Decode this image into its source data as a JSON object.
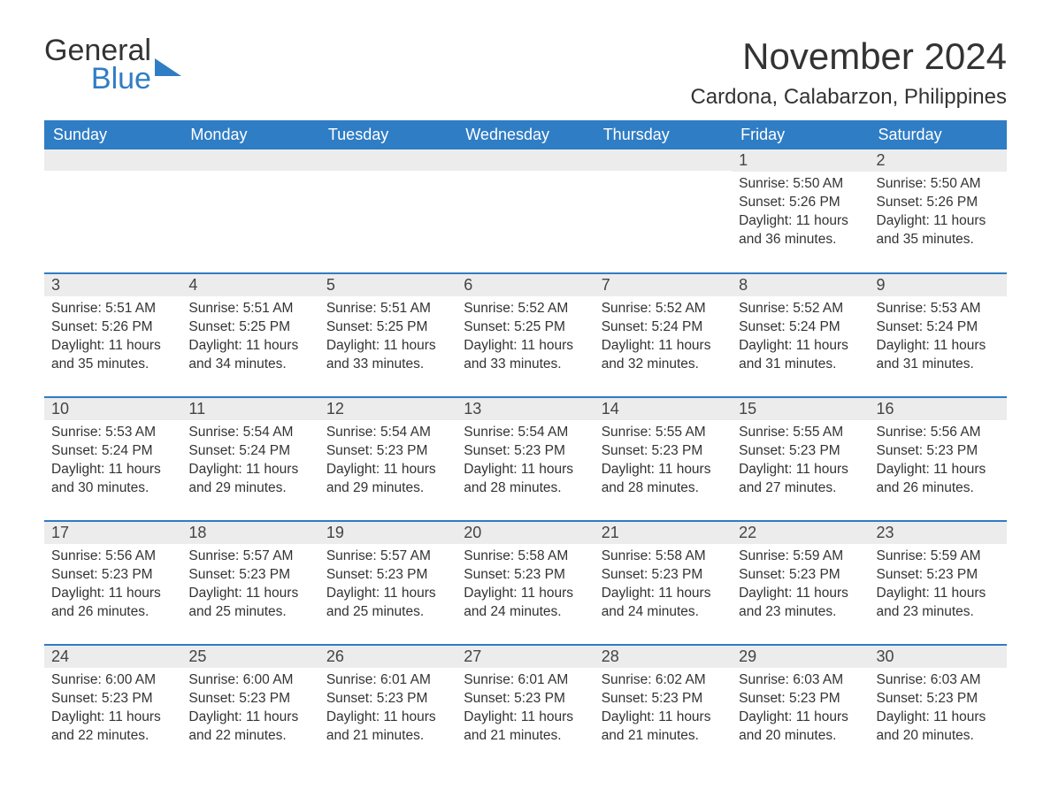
{
  "brand": {
    "word1": "General",
    "word2": "Blue"
  },
  "title": "November 2024",
  "location": "Cardona, Calabarzon, Philippines",
  "colors": {
    "header_bg": "#2f7dc4",
    "header_text": "#ffffff",
    "daynum_bg": "#ececec",
    "rule": "#2f7dc4",
    "body_text": "#333333",
    "page_bg": "#ffffff"
  },
  "typography": {
    "title_fontsize": 42,
    "location_fontsize": 24,
    "dayheader_fontsize": 18,
    "daynum_fontsize": 18,
    "body_fontsize": 15.5
  },
  "day_headers": [
    "Sunday",
    "Monday",
    "Tuesday",
    "Wednesday",
    "Thursday",
    "Friday",
    "Saturday"
  ],
  "weeks": [
    [
      {
        "n": "",
        "sunrise": "",
        "sunset": "",
        "daylight": ""
      },
      {
        "n": "",
        "sunrise": "",
        "sunset": "",
        "daylight": ""
      },
      {
        "n": "",
        "sunrise": "",
        "sunset": "",
        "daylight": ""
      },
      {
        "n": "",
        "sunrise": "",
        "sunset": "",
        "daylight": ""
      },
      {
        "n": "",
        "sunrise": "",
        "sunset": "",
        "daylight": ""
      },
      {
        "n": "1",
        "sunrise": "Sunrise: 5:50 AM",
        "sunset": "Sunset: 5:26 PM",
        "daylight": "Daylight: 11 hours and 36 minutes."
      },
      {
        "n": "2",
        "sunrise": "Sunrise: 5:50 AM",
        "sunset": "Sunset: 5:26 PM",
        "daylight": "Daylight: 11 hours and 35 minutes."
      }
    ],
    [
      {
        "n": "3",
        "sunrise": "Sunrise: 5:51 AM",
        "sunset": "Sunset: 5:26 PM",
        "daylight": "Daylight: 11 hours and 35 minutes."
      },
      {
        "n": "4",
        "sunrise": "Sunrise: 5:51 AM",
        "sunset": "Sunset: 5:25 PM",
        "daylight": "Daylight: 11 hours and 34 minutes."
      },
      {
        "n": "5",
        "sunrise": "Sunrise: 5:51 AM",
        "sunset": "Sunset: 5:25 PM",
        "daylight": "Daylight: 11 hours and 33 minutes."
      },
      {
        "n": "6",
        "sunrise": "Sunrise: 5:52 AM",
        "sunset": "Sunset: 5:25 PM",
        "daylight": "Daylight: 11 hours and 33 minutes."
      },
      {
        "n": "7",
        "sunrise": "Sunrise: 5:52 AM",
        "sunset": "Sunset: 5:24 PM",
        "daylight": "Daylight: 11 hours and 32 minutes."
      },
      {
        "n": "8",
        "sunrise": "Sunrise: 5:52 AM",
        "sunset": "Sunset: 5:24 PM",
        "daylight": "Daylight: 11 hours and 31 minutes."
      },
      {
        "n": "9",
        "sunrise": "Sunrise: 5:53 AM",
        "sunset": "Sunset: 5:24 PM",
        "daylight": "Daylight: 11 hours and 31 minutes."
      }
    ],
    [
      {
        "n": "10",
        "sunrise": "Sunrise: 5:53 AM",
        "sunset": "Sunset: 5:24 PM",
        "daylight": "Daylight: 11 hours and 30 minutes."
      },
      {
        "n": "11",
        "sunrise": "Sunrise: 5:54 AM",
        "sunset": "Sunset: 5:24 PM",
        "daylight": "Daylight: 11 hours and 29 minutes."
      },
      {
        "n": "12",
        "sunrise": "Sunrise: 5:54 AM",
        "sunset": "Sunset: 5:23 PM",
        "daylight": "Daylight: 11 hours and 29 minutes."
      },
      {
        "n": "13",
        "sunrise": "Sunrise: 5:54 AM",
        "sunset": "Sunset: 5:23 PM",
        "daylight": "Daylight: 11 hours and 28 minutes."
      },
      {
        "n": "14",
        "sunrise": "Sunrise: 5:55 AM",
        "sunset": "Sunset: 5:23 PM",
        "daylight": "Daylight: 11 hours and 28 minutes."
      },
      {
        "n": "15",
        "sunrise": "Sunrise: 5:55 AM",
        "sunset": "Sunset: 5:23 PM",
        "daylight": "Daylight: 11 hours and 27 minutes."
      },
      {
        "n": "16",
        "sunrise": "Sunrise: 5:56 AM",
        "sunset": "Sunset: 5:23 PM",
        "daylight": "Daylight: 11 hours and 26 minutes."
      }
    ],
    [
      {
        "n": "17",
        "sunrise": "Sunrise: 5:56 AM",
        "sunset": "Sunset: 5:23 PM",
        "daylight": "Daylight: 11 hours and 26 minutes."
      },
      {
        "n": "18",
        "sunrise": "Sunrise: 5:57 AM",
        "sunset": "Sunset: 5:23 PM",
        "daylight": "Daylight: 11 hours and 25 minutes."
      },
      {
        "n": "19",
        "sunrise": "Sunrise: 5:57 AM",
        "sunset": "Sunset: 5:23 PM",
        "daylight": "Daylight: 11 hours and 25 minutes."
      },
      {
        "n": "20",
        "sunrise": "Sunrise: 5:58 AM",
        "sunset": "Sunset: 5:23 PM",
        "daylight": "Daylight: 11 hours and 24 minutes."
      },
      {
        "n": "21",
        "sunrise": "Sunrise: 5:58 AM",
        "sunset": "Sunset: 5:23 PM",
        "daylight": "Daylight: 11 hours and 24 minutes."
      },
      {
        "n": "22",
        "sunrise": "Sunrise: 5:59 AM",
        "sunset": "Sunset: 5:23 PM",
        "daylight": "Daylight: 11 hours and 23 minutes."
      },
      {
        "n": "23",
        "sunrise": "Sunrise: 5:59 AM",
        "sunset": "Sunset: 5:23 PM",
        "daylight": "Daylight: 11 hours and 23 minutes."
      }
    ],
    [
      {
        "n": "24",
        "sunrise": "Sunrise: 6:00 AM",
        "sunset": "Sunset: 5:23 PM",
        "daylight": "Daylight: 11 hours and 22 minutes."
      },
      {
        "n": "25",
        "sunrise": "Sunrise: 6:00 AM",
        "sunset": "Sunset: 5:23 PM",
        "daylight": "Daylight: 11 hours and 22 minutes."
      },
      {
        "n": "26",
        "sunrise": "Sunrise: 6:01 AM",
        "sunset": "Sunset: 5:23 PM",
        "daylight": "Daylight: 11 hours and 21 minutes."
      },
      {
        "n": "27",
        "sunrise": "Sunrise: 6:01 AM",
        "sunset": "Sunset: 5:23 PM",
        "daylight": "Daylight: 11 hours and 21 minutes."
      },
      {
        "n": "28",
        "sunrise": "Sunrise: 6:02 AM",
        "sunset": "Sunset: 5:23 PM",
        "daylight": "Daylight: 11 hours and 21 minutes."
      },
      {
        "n": "29",
        "sunrise": "Sunrise: 6:03 AM",
        "sunset": "Sunset: 5:23 PM",
        "daylight": "Daylight: 11 hours and 20 minutes."
      },
      {
        "n": "30",
        "sunrise": "Sunrise: 6:03 AM",
        "sunset": "Sunset: 5:23 PM",
        "daylight": "Daylight: 11 hours and 20 minutes."
      }
    ]
  ]
}
